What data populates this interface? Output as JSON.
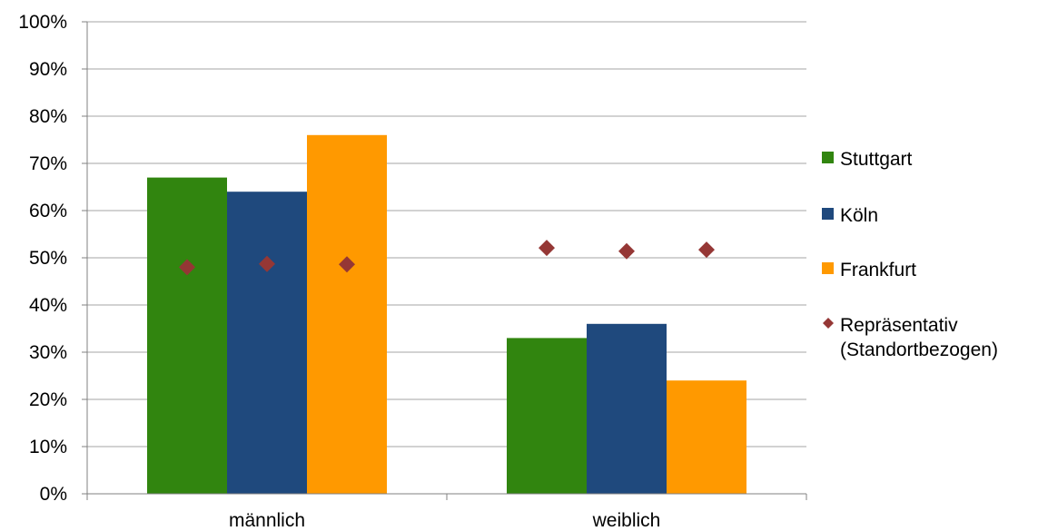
{
  "chart_data": {
    "type": "bar",
    "categories": [
      "männlich",
      "weiblich"
    ],
    "series": [
      {
        "name": "Stuttgart",
        "kind": "bar",
        "color": "#31850F",
        "values": [
          67,
          33
        ]
      },
      {
        "name": "Köln",
        "kind": "bar",
        "color": "#1F497D",
        "values": [
          64,
          36
        ]
      },
      {
        "name": "Frankfurt",
        "kind": "bar",
        "color": "#FF9900",
        "values": [
          76,
          24
        ]
      },
      {
        "name": "Repräsentativ (Standortbezogen)",
        "name_lines": [
          "Repräsentativ",
          "(Standortbezogen)"
        ],
        "kind": "marker",
        "marker": "diamond",
        "color": "#953735",
        "values": [
          [
            48,
            48.7,
            48.6
          ],
          [
            52.1,
            51.4,
            51.7
          ]
        ]
      }
    ],
    "ylim": [
      0,
      100
    ],
    "yticks": [
      "0%",
      "10%",
      "20%",
      "30%",
      "40%",
      "50%",
      "60%",
      "70%",
      "80%",
      "90%",
      "100%"
    ],
    "ytick_values": [
      0,
      10,
      20,
      30,
      40,
      50,
      60,
      70,
      80,
      90,
      100
    ],
    "grid": true,
    "legend_position": "right",
    "title": "",
    "xlabel": "",
    "ylabel": ""
  }
}
